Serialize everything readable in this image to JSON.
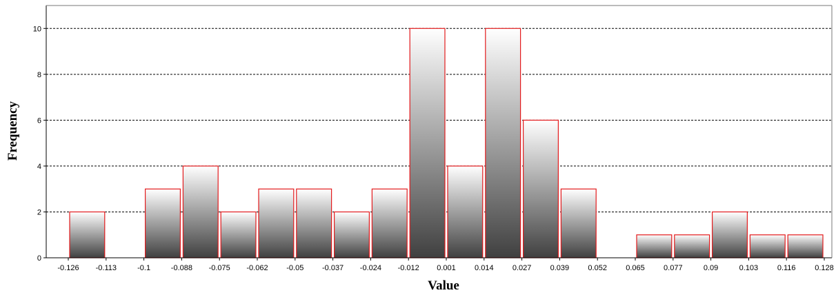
{
  "chart_data": {
    "type": "bar",
    "xlabel": "Value",
    "ylabel": "Frequency",
    "x_ticks": [
      "-0.126",
      "-0.113",
      "-0.1",
      "-0.088",
      "-0.075",
      "-0.062",
      "-0.05",
      "-0.037",
      "-0.024",
      "-0.012",
      "0.001",
      "0.014",
      "0.027",
      "0.039",
      "0.052",
      "0.065",
      "0.077",
      "0.09",
      "0.103",
      "0.116",
      "0.128"
    ],
    "values": [
      2,
      0,
      3,
      4,
      2,
      3,
      3,
      2,
      3,
      10,
      4,
      10,
      6,
      3,
      0,
      1,
      1,
      2,
      1,
      1
    ],
    "y_ticks": [
      0,
      2,
      4,
      6,
      8,
      10
    ],
    "ylim": [
      0,
      11
    ],
    "grid": "horizontal dashed",
    "colors": {
      "bar_outline": "#e31a1c",
      "bar_fill_top": "#ffffff",
      "bar_fill_bottom": "#404040",
      "grid": "#000000"
    }
  }
}
